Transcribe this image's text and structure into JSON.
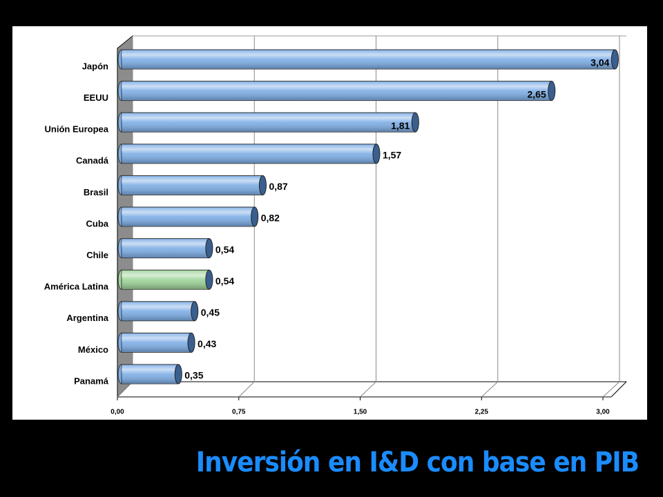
{
  "chart_data": {
    "type": "bar",
    "orientation": "horizontal",
    "title": "Inversión en I&D con base en PIB",
    "categories": [
      "Japón",
      "EEUU",
      "Unión Europea",
      "Canadá",
      "Brasil",
      "Cuba",
      "Chile",
      "América Latina",
      "Argentina",
      "México",
      "Panamá"
    ],
    "values": [
      3.04,
      2.65,
      1.81,
      1.57,
      0.87,
      0.82,
      0.54,
      0.54,
      0.45,
      0.43,
      0.35
    ],
    "value_labels": [
      "3,04",
      "2,65",
      "1,81",
      "1,57",
      "0,87",
      "0,82",
      "0,54",
      "0,54",
      "0,45",
      "0,43",
      "0,35"
    ],
    "colors": [
      "#7eaee6",
      "#7eaee6",
      "#7eaee6",
      "#7eaee6",
      "#7eaee6",
      "#7eaee6",
      "#7eaee6",
      "#9fd49a",
      "#7eaee6",
      "#7eaee6",
      "#7eaee6"
    ],
    "xlim": [
      0,
      3
    ],
    "xticks": [
      {
        "value": 0,
        "label": "0,00"
      },
      {
        "value": 0.75,
        "label": "0,75"
      },
      {
        "value": 1.5,
        "label": "1,50"
      },
      {
        "value": 2.25,
        "label": "2,25"
      },
      {
        "value": 3,
        "label": "3,00"
      }
    ],
    "grid": true
  }
}
